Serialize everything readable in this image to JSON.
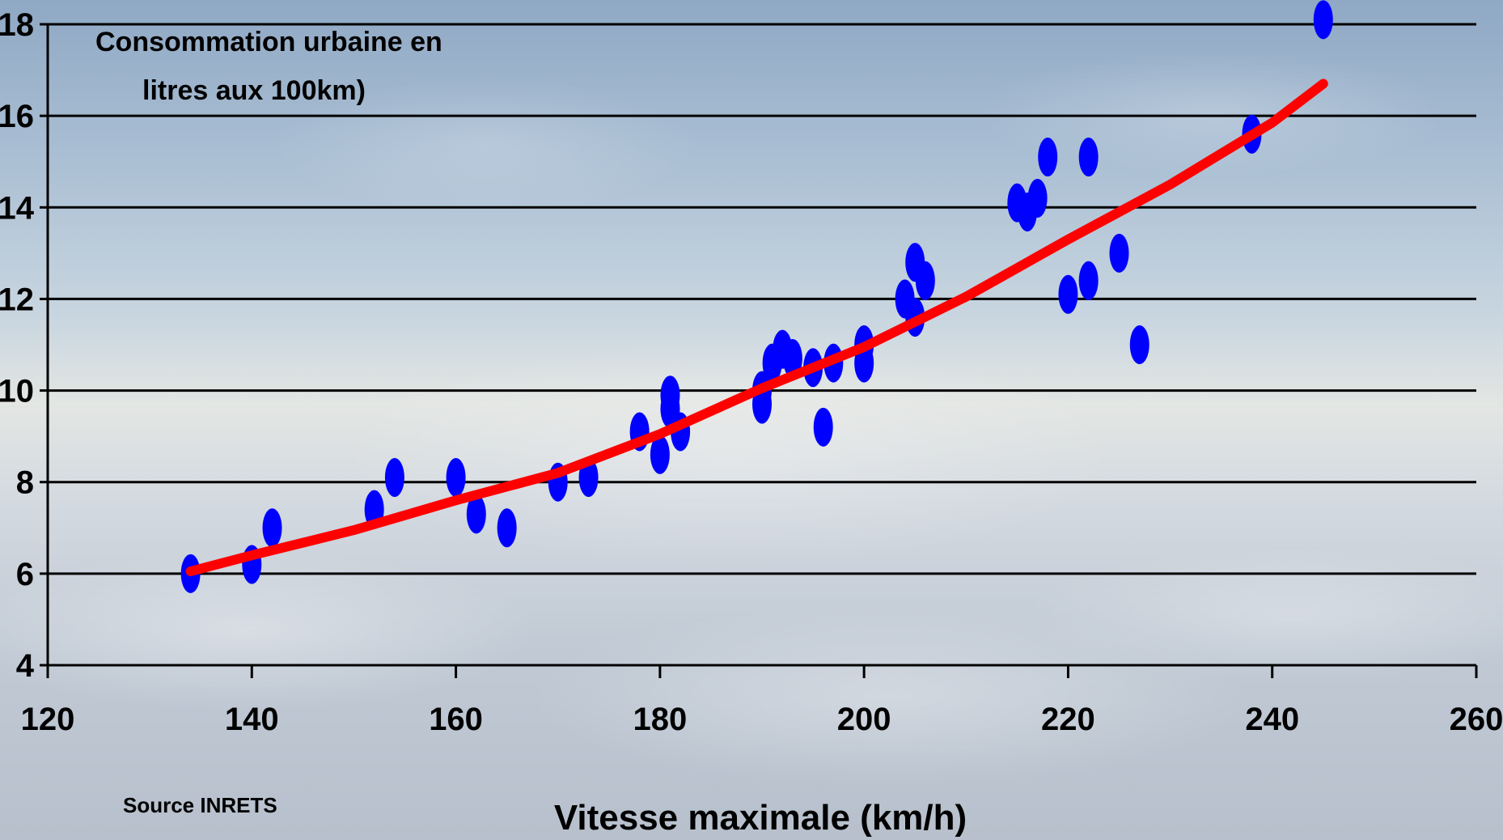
{
  "source_note": "Source INRETS",
  "chart_data": {
    "type": "scatter",
    "title": "",
    "ylabel_lines": [
      "Consommation urbaine en",
      "litres aux 100km)"
    ],
    "xlabel": "Vitesse maximale (km/h)",
    "xlim": [
      120,
      260
    ],
    "ylim": [
      4,
      18
    ],
    "x_ticks": [
      120,
      140,
      160,
      180,
      200,
      220,
      240,
      260
    ],
    "y_ticks": [
      4,
      6,
      8,
      10,
      12,
      14,
      16,
      18
    ],
    "grid": "horizontal",
    "colors": {
      "points": "#0000ff",
      "trend": "#ff0000",
      "grid": "#000000"
    },
    "points": [
      [
        134,
        6.0
      ],
      [
        140,
        6.2
      ],
      [
        142,
        7.0
      ],
      [
        152,
        7.4
      ],
      [
        154,
        8.1
      ],
      [
        160,
        8.1
      ],
      [
        162,
        7.3
      ],
      [
        165,
        7.0
      ],
      [
        170,
        8.0
      ],
      [
        173,
        8.1
      ],
      [
        178,
        9.1
      ],
      [
        180,
        8.6
      ],
      [
        181,
        9.6
      ],
      [
        181,
        9.9
      ],
      [
        182,
        9.1
      ],
      [
        190,
        9.7
      ],
      [
        190,
        10.0
      ],
      [
        191,
        10.6
      ],
      [
        192,
        10.9
      ],
      [
        193,
        10.7
      ],
      [
        195,
        10.5
      ],
      [
        196,
        9.2
      ],
      [
        197,
        10.6
      ],
      [
        200,
        10.6
      ],
      [
        200,
        11.0
      ],
      [
        204,
        12.0
      ],
      [
        205,
        12.8
      ],
      [
        205,
        11.6
      ],
      [
        206,
        12.4
      ],
      [
        215,
        14.1
      ],
      [
        216,
        13.9
      ],
      [
        217,
        14.2
      ],
      [
        218,
        15.1
      ],
      [
        220,
        12.1
      ],
      [
        222,
        15.1
      ],
      [
        222,
        12.4
      ],
      [
        225,
        13.0
      ],
      [
        227,
        11.0
      ],
      [
        238,
        15.6
      ],
      [
        245,
        18.1
      ]
    ],
    "trend_line": [
      [
        134,
        6.05
      ],
      [
        140,
        6.4
      ],
      [
        150,
        6.95
      ],
      [
        160,
        7.6
      ],
      [
        170,
        8.2
      ],
      [
        180,
        9.05
      ],
      [
        190,
        10.05
      ],
      [
        200,
        10.95
      ],
      [
        205,
        11.5
      ],
      [
        210,
        12.05
      ],
      [
        220,
        13.3
      ],
      [
        230,
        14.5
      ],
      [
        240,
        15.85
      ],
      [
        245,
        16.7
      ]
    ]
  }
}
